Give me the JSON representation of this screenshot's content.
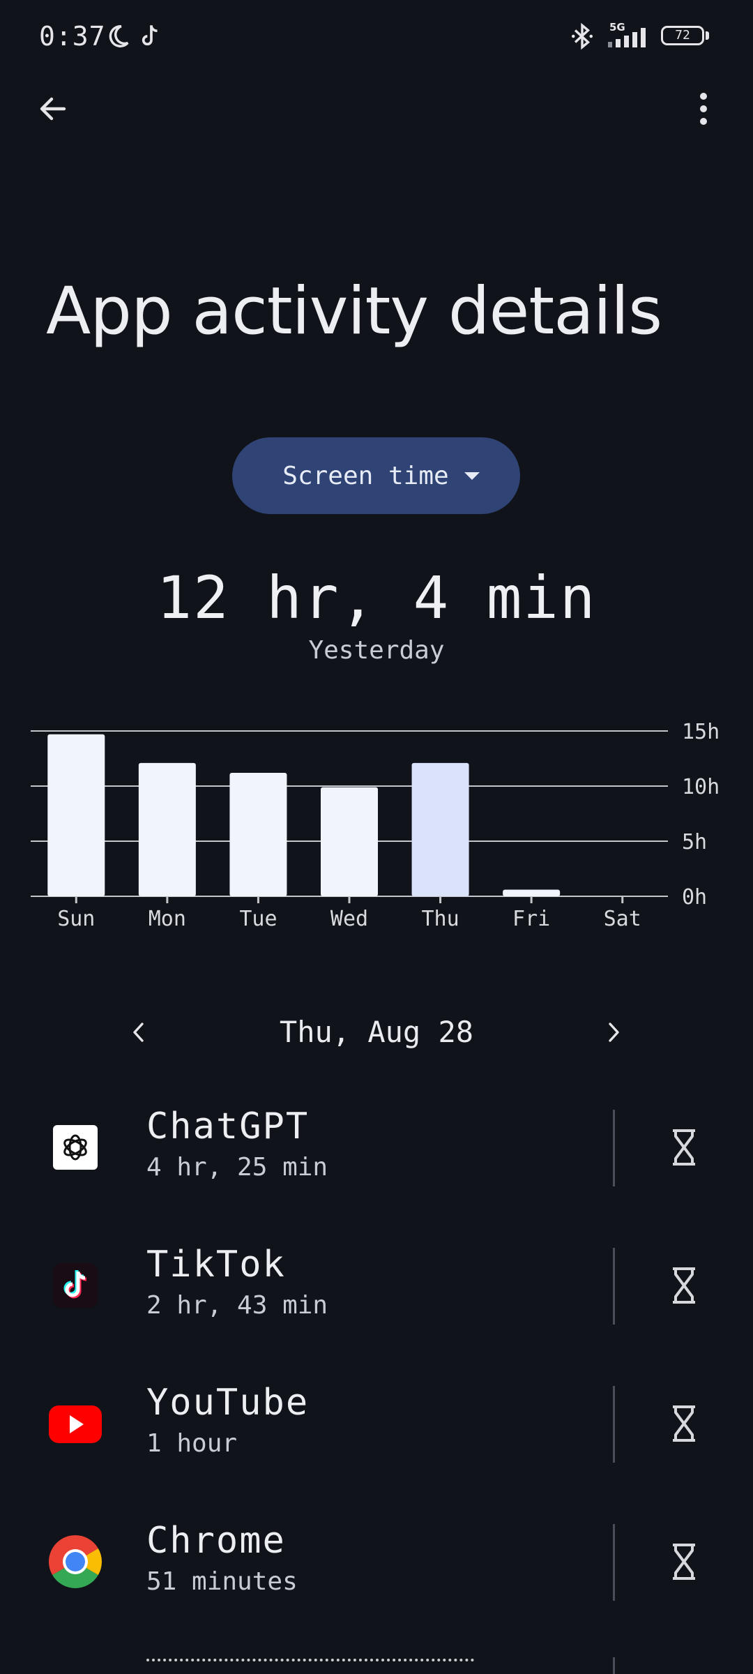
{
  "status_bar": {
    "time": "0:37",
    "network": "5G",
    "battery": "72",
    "icons": [
      "moon-icon",
      "tiktok-notification-icon",
      "bluetooth-icon",
      "signal-icon",
      "battery-icon"
    ]
  },
  "toolbar": {
    "back_icon": "arrow-left-icon",
    "menu_icon": "more-vert-icon"
  },
  "page": {
    "title": "App activity details"
  },
  "metric_selector": {
    "label": "Screen time",
    "icon": "caret-down-icon"
  },
  "summary": {
    "total": "12 hr, 4 min",
    "period": "Yesterday"
  },
  "chart_data": {
    "type": "bar",
    "categories": [
      "Sun",
      "Mon",
      "Tue",
      "Wed",
      "Thu",
      "Fri",
      "Sat"
    ],
    "values": [
      14.7,
      12.1,
      11.2,
      9.9,
      12.1,
      0.6,
      0
    ],
    "y_ticks": [
      "0h",
      "5h",
      "10h",
      "15h"
    ],
    "ylim": [
      0,
      15
    ],
    "selected_category": "Thu",
    "grid": true,
    "colors": {
      "bar": "#f2f4fc",
      "selected_bar": "#dbe3fb",
      "grid": "#c4c6cc"
    }
  },
  "date_nav": {
    "label": "Thu, Aug 28",
    "prev_icon": "chevron-left-icon",
    "next_icon": "chevron-right-icon"
  },
  "apps": [
    {
      "name": "ChatGPT",
      "time": "4 hr, 25 min",
      "icon": "chatgpt-logo-icon",
      "action_icon": "hourglass-icon"
    },
    {
      "name": "TikTok",
      "time": "2 hr, 43 min",
      "icon": "tiktok-logo-icon",
      "action_icon": "hourglass-icon"
    },
    {
      "name": "YouTube",
      "time": "1 hour",
      "icon": "youtube-logo-icon",
      "action_icon": "hourglass-icon"
    },
    {
      "name": "Chrome",
      "time": "51 minutes",
      "icon": "chrome-logo-icon",
      "action_icon": "hourglass-icon"
    }
  ],
  "colors": {
    "background": "#10131a",
    "chip": "#2f4475",
    "text": "#eceef2"
  }
}
